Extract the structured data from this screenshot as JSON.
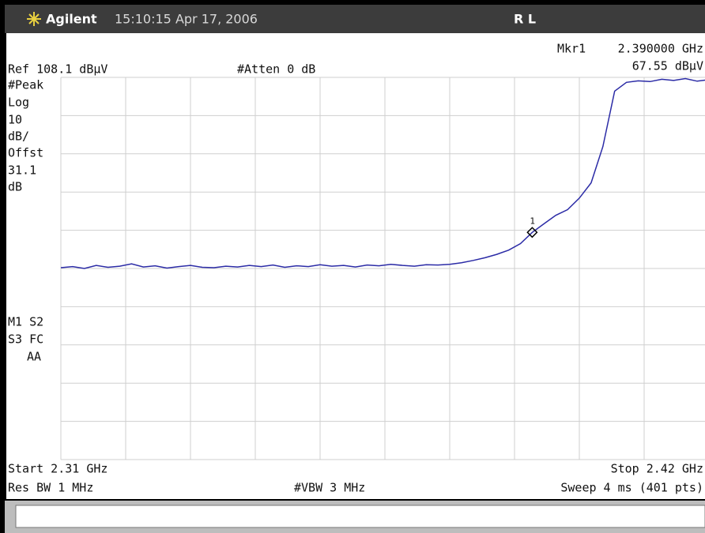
{
  "header": {
    "brand": "Agilent",
    "timestamp": "15:10:15  Apr 17, 2006",
    "mode": "R L"
  },
  "chart_data": {
    "type": "line",
    "marker_readout": {
      "name": "Mkr1",
      "frequency": "2.390000 GHz",
      "amplitude": "67.55 dBµV"
    },
    "reference": "Ref 108.1 dBµV",
    "attenuation": "#Atten 0 dB",
    "scale_info": [
      "#Peak",
      "Log",
      "10",
      "dB/",
      "Offst",
      "31.1",
      "dB"
    ],
    "status_info": [
      "M1  S2",
      "S3  FC",
      "AA"
    ],
    "start": "Start 2.31 GHz",
    "stop": "Stop 2.42 GHz",
    "rbw": "Res BW 1 MHz",
    "vbw": "#VBW 3 MHz",
    "sweep": "Sweep 4 ms (401 pts)",
    "xlim": [
      2.31,
      2.42
    ],
    "ylim": [
      8.1,
      108.1
    ],
    "xticks": [
      2.31,
      2.321,
      2.332,
      2.343,
      2.354,
      2.365,
      2.376,
      2.387,
      2.398,
      2.409,
      2.42
    ],
    "yticks": [
      8.1,
      18.1,
      28.1,
      38.1,
      48.1,
      58.1,
      68.1,
      78.1,
      88.1,
      98.1,
      108.1
    ],
    "grid": true,
    "x": [
      2.31,
      2.312,
      2.314,
      2.316,
      2.318,
      2.32,
      2.322,
      2.324,
      2.326,
      2.328,
      2.33,
      2.332,
      2.334,
      2.336,
      2.338,
      2.34,
      2.342,
      2.344,
      2.346,
      2.348,
      2.35,
      2.352,
      2.354,
      2.356,
      2.358,
      2.36,
      2.362,
      2.364,
      2.366,
      2.368,
      2.37,
      2.372,
      2.374,
      2.376,
      2.378,
      2.38,
      2.382,
      2.384,
      2.386,
      2.388,
      2.39,
      2.392,
      2.394,
      2.396,
      2.398,
      2.4,
      2.402,
      2.404,
      2.406,
      2.408,
      2.41,
      2.412,
      2.414,
      2.416,
      2.418,
      2.42
    ],
    "series": [
      {
        "color": "#2b2ba6",
        "values": [
          58.3,
          58.6,
          58.1,
          58.9,
          58.4,
          58.7,
          59.3,
          58.5,
          58.8,
          58.2,
          58.6,
          58.9,
          58.4,
          58.3,
          58.7,
          58.5,
          58.9,
          58.6,
          59.0,
          58.4,
          58.8,
          58.6,
          59.1,
          58.7,
          58.9,
          58.5,
          59.0,
          58.8,
          59.2,
          58.9,
          58.7,
          59.1,
          59.0,
          59.2,
          59.6,
          60.2,
          60.9,
          61.8,
          62.9,
          64.6,
          67.55,
          69.8,
          72.0,
          73.5,
          76.5,
          80.5,
          90.0,
          104.5,
          106.8,
          107.2,
          107.0,
          107.6,
          107.3,
          107.8,
          107.1,
          107.5
        ]
      }
    ],
    "marker": {
      "label": "1",
      "x": 2.39,
      "y": 67.55
    }
  }
}
